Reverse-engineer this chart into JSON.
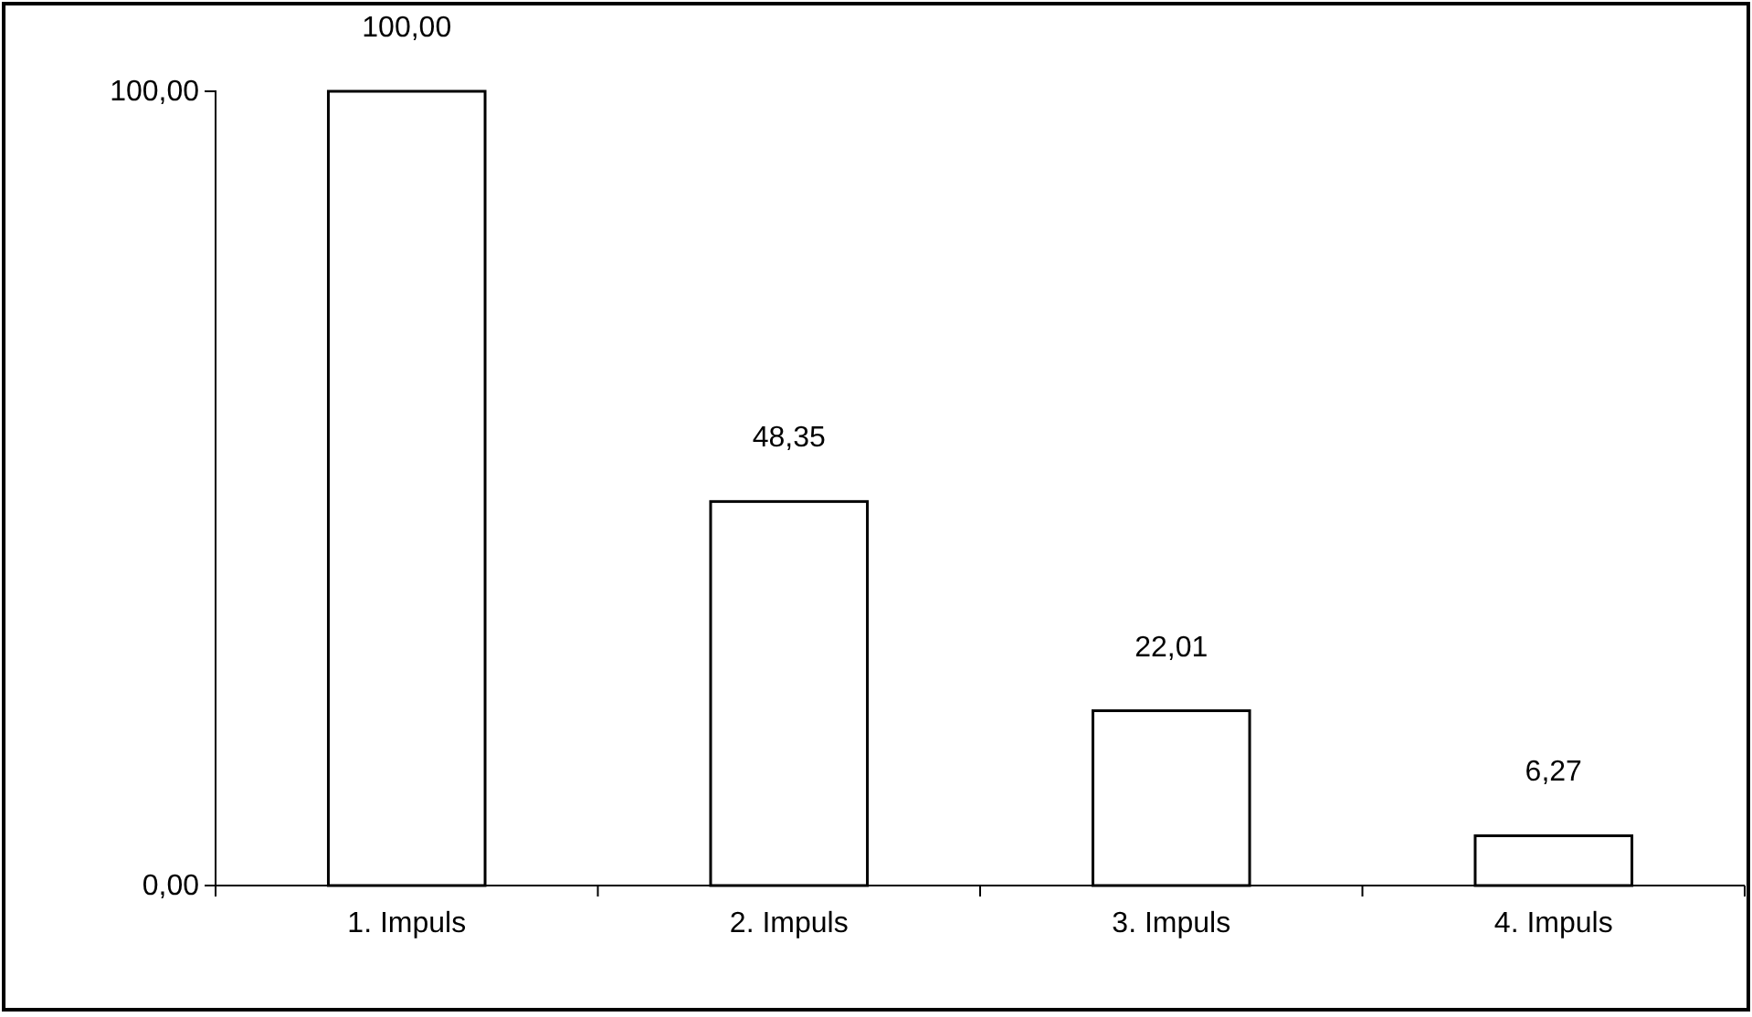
{
  "chart_data": {
    "type": "bar",
    "categories": [
      "1. Impuls",
      "2. Impuls",
      "3. Impuls",
      "4. Impuls"
    ],
    "values": [
      100,
      48.35,
      22.01,
      6.27
    ],
    "value_labels": [
      "100,00",
      "48,35",
      "22,01",
      "6,27"
    ],
    "color": "#ffffff",
    "ylim": [
      0,
      100
    ],
    "yticks": [
      {
        "value": 0,
        "label": "0,00"
      },
      {
        "value": 100,
        "label": "100,00"
      }
    ]
  }
}
